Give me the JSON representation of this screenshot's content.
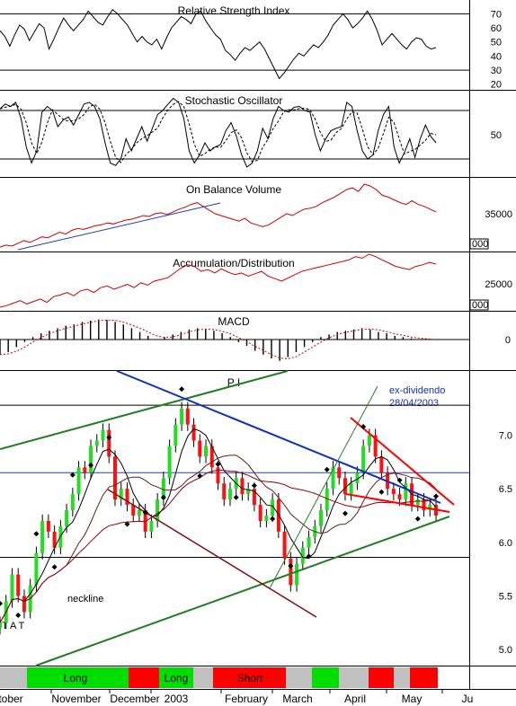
{
  "chart_data": [
    {
      "panel": "rsi",
      "type": "line",
      "title": "Relative Strength Index",
      "yticks": [
        70,
        60,
        50,
        40,
        30,
        20
      ],
      "ylim": [
        16,
        76
      ],
      "ref_lines": [
        30,
        70
      ],
      "color": "#000000",
      "values": [
        58,
        54,
        47,
        55,
        62,
        59,
        51,
        57,
        63,
        60,
        45,
        52,
        60,
        67,
        62,
        58,
        62,
        66,
        72,
        68,
        64,
        62,
        68,
        73,
        70,
        66,
        62,
        56,
        50,
        54,
        50,
        48,
        52,
        45,
        53,
        60,
        64,
        68,
        66,
        63,
        70,
        72,
        65,
        60,
        55,
        52,
        44,
        41,
        37,
        42,
        46,
        44,
        47,
        50,
        45,
        38,
        31,
        24,
        28,
        33,
        38,
        42,
        40,
        44,
        48,
        46,
        50,
        55,
        62,
        66,
        70,
        66,
        60,
        63,
        67,
        72,
        66,
        58,
        48,
        52,
        56,
        52,
        48,
        45,
        50,
        53,
        52,
        47,
        45,
        46
      ]
    },
    {
      "panel": "stochastic",
      "type": "line",
      "title": "Stochastic Oscillator",
      "yticks": [
        50
      ],
      "ylim": [
        0,
        100
      ],
      "ref_lines": [
        20,
        80
      ],
      "color": "#000000",
      "values": [
        82,
        88,
        85,
        90,
        70,
        35,
        15,
        30,
        78,
        85,
        80,
        60,
        68,
        72,
        62,
        75,
        88,
        90,
        85,
        70,
        40,
        15,
        12,
        20,
        45,
        30,
        45,
        60,
        42,
        58,
        75,
        80,
        88,
        95,
        90,
        70,
        30,
        15,
        25,
        40,
        30,
        35,
        38,
        55,
        65,
        48,
        25,
        10,
        15,
        30,
        58,
        45,
        70,
        85,
        80,
        78,
        84,
        85,
        80,
        78,
        50,
        30,
        45,
        55,
        58,
        60,
        90,
        85,
        55,
        30,
        20,
        25,
        55,
        75,
        85,
        35,
        15,
        28,
        45,
        22,
        45,
        62,
        48,
        40
      ]
    },
    {
      "panel": "obv",
      "type": "line",
      "title": "On Balance Volume",
      "yticks": [
        35000
      ],
      "ytick_label_boxed": "000",
      "color": "#cc0000",
      "trendline_color": "#2040c0",
      "values": [
        4,
        6,
        5,
        8,
        11,
        9,
        12,
        15,
        14,
        17,
        20,
        18,
        22,
        24,
        23,
        25,
        27,
        28,
        30,
        29,
        31,
        33,
        34,
        36,
        38,
        37,
        40,
        41,
        39,
        42,
        45,
        47,
        50,
        52,
        48,
        44,
        40,
        38,
        36,
        34,
        32,
        35,
        30,
        28,
        26,
        28,
        32,
        36,
        40,
        38,
        42,
        45,
        46,
        48,
        52,
        55,
        58,
        62,
        66,
        68,
        64,
        72,
        70,
        66,
        60,
        58,
        55,
        52,
        50,
        54,
        50,
        48,
        45,
        42
      ]
    },
    {
      "panel": "accumulation_distribution",
      "type": "line",
      "title": "Accumulation/Distribution",
      "yticks": [
        25000
      ],
      "ytick_label_boxed": "000",
      "color": "#cc0000",
      "values": [
        20,
        22,
        25,
        28,
        24,
        27,
        30,
        26,
        33,
        35,
        38,
        34,
        40,
        42,
        38,
        44,
        46,
        42,
        45,
        48,
        44,
        50,
        47,
        52,
        54,
        56,
        62,
        68,
        72,
        70,
        64,
        66,
        62,
        67,
        63,
        60,
        62,
        58,
        61,
        64,
        58,
        55,
        52,
        56,
        60,
        64,
        66,
        68,
        70,
        72,
        74,
        76,
        78,
        82,
        80,
        85,
        82,
        78,
        74,
        70,
        68,
        66,
        70,
        72,
        75,
        73
      ]
    },
    {
      "panel": "macd",
      "type": "bar",
      "title": "MACD",
      "yticks": [
        0
      ],
      "ylim": [
        -1,
        1
      ],
      "color": "#000000",
      "signal_color": "#cc0000",
      "values": [
        -0.6,
        -0.5,
        -0.3,
        -0.1,
        0.1,
        0.25,
        0.35,
        0.45,
        0.55,
        0.6,
        0.7,
        0.75,
        0.8,
        0.78,
        0.7,
        0.6,
        0.45,
        0.3,
        0.15,
        0.0,
        0.1,
        0.2,
        0.3,
        0.4,
        0.45,
        0.4,
        0.35,
        0.25,
        0.1,
        -0.1,
        -0.25,
        -0.45,
        -0.6,
        -0.75,
        -0.85,
        -0.7,
        -0.5,
        -0.3,
        -0.1,
        0.1,
        0.2,
        0.3,
        0.35,
        0.4,
        0.45,
        0.4,
        0.3,
        0.25,
        0.15,
        0.1,
        0.05,
        0.02,
        0.0,
        -0.02
      ]
    },
    {
      "panel": "price",
      "type": "candlestick",
      "title": "P I",
      "yticks": [
        7.0,
        6.5,
        6.0,
        5.5,
        5.0
      ],
      "ylim": [
        4.85,
        7.6
      ],
      "annotations": [
        "ex-dividendo",
        "28/04/2003",
        "neckline",
        "T A T"
      ],
      "close": [
        5.25,
        5.45,
        5.7,
        5.5,
        5.35,
        5.6,
        5.9,
        6.2,
        6.1,
        5.95,
        6.15,
        6.3,
        6.45,
        6.7,
        6.65,
        6.9,
        6.95,
        7.05,
        6.8,
        6.4,
        6.5,
        6.35,
        6.25,
        6.3,
        6.1,
        6.2,
        6.4,
        6.6,
        6.9,
        7.1,
        7.25,
        7.1,
        6.95,
        6.8,
        6.9,
        6.7,
        6.55,
        6.4,
        6.5,
        6.6,
        6.45,
        6.5,
        6.35,
        6.2,
        6.25,
        6.4,
        6.1,
        5.85,
        5.6,
        5.8,
        5.95,
        6.05,
        6.15,
        6.3,
        6.5,
        6.7,
        6.6,
        6.45,
        6.55,
        6.65,
        6.9,
        7.0,
        6.8,
        6.65,
        6.5,
        6.45,
        6.4,
        6.55,
        6.35,
        6.4,
        6.3,
        6.35,
        6.25
      ]
    }
  ],
  "signal_band": {
    "labels": [
      "Long",
      "Long",
      "Short"
    ],
    "colors": {
      "long": "#00dd00",
      "short": "#ff0000",
      "neutral": "#c0c0c0"
    }
  },
  "x_axis": {
    "labels": [
      "tober",
      "November",
      "December",
      "2003",
      "February",
      "March",
      "April",
      "May",
      "Ju"
    ]
  }
}
